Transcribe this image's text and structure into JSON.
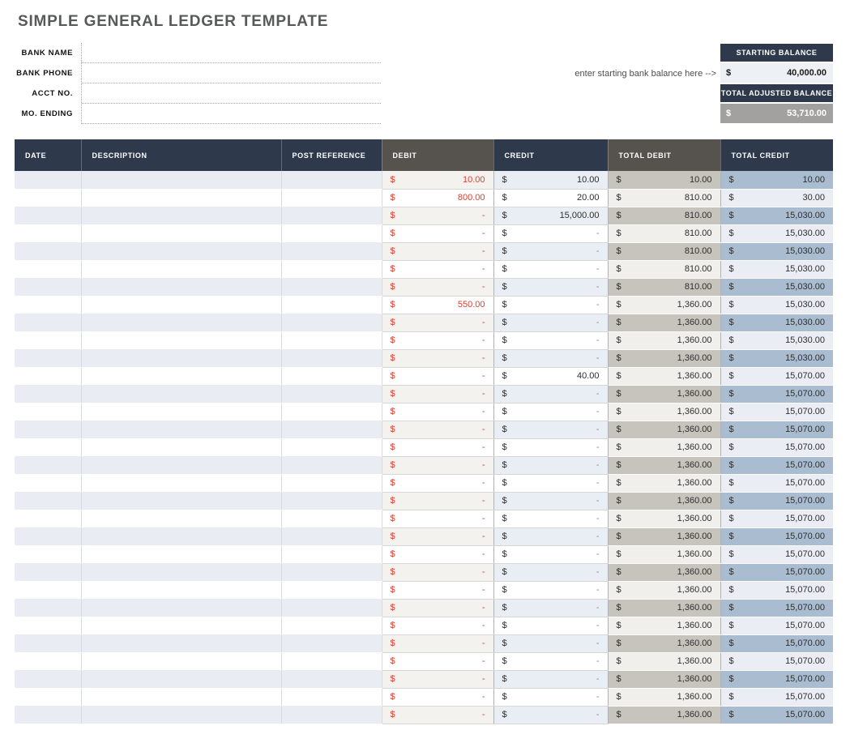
{
  "title": "SIMPLE GENERAL LEDGER TEMPLATE",
  "form": {
    "fields": [
      {
        "label": "BANK NAME",
        "value": ""
      },
      {
        "label": "BANK PHONE",
        "value": ""
      },
      {
        "label": "ACCT NO.",
        "value": ""
      },
      {
        "label": "MO. ENDING",
        "value": ""
      }
    ]
  },
  "balance_panel": {
    "note": "enter starting bank balance here -->",
    "starting_balance": {
      "label": "STARTING BALANCE",
      "currency": "$",
      "value": "40,000.00"
    },
    "adjusted_balance": {
      "label": "TOTAL ADJUSTED BALANCE",
      "currency": "$",
      "value": "53,710.00"
    }
  },
  "table": {
    "currency_symbol": "$",
    "columns": [
      {
        "label": "DATE",
        "style": "navy"
      },
      {
        "label": "DESCRIPTION",
        "style": "navy"
      },
      {
        "label": "POST REFERENCE",
        "style": "navy"
      },
      {
        "label": "DEBIT",
        "style": "gray"
      },
      {
        "label": "CREDIT",
        "style": "navy"
      },
      {
        "label": "TOTAL DEBIT",
        "style": "gray"
      },
      {
        "label": "TOTAL CREDIT",
        "style": "navy"
      }
    ],
    "rows": [
      {
        "date": "",
        "description": "",
        "post_reference": "",
        "debit": "10.00",
        "credit": "10.00",
        "total_debit": "10.00",
        "total_credit": "10.00"
      },
      {
        "date": "",
        "description": "",
        "post_reference": "",
        "debit": "800.00",
        "credit": "20.00",
        "total_debit": "810.00",
        "total_credit": "30.00"
      },
      {
        "date": "",
        "description": "",
        "post_reference": "",
        "debit": "-",
        "credit": "15,000.00",
        "total_debit": "810.00",
        "total_credit": "15,030.00"
      },
      {
        "date": "",
        "description": "",
        "post_reference": "",
        "debit": "-",
        "credit": "-",
        "total_debit": "810.00",
        "total_credit": "15,030.00"
      },
      {
        "date": "",
        "description": "",
        "post_reference": "",
        "debit": "-",
        "credit": "-",
        "total_debit": "810.00",
        "total_credit": "15,030.00"
      },
      {
        "date": "",
        "description": "",
        "post_reference": "",
        "debit": "-",
        "credit": "-",
        "total_debit": "810.00",
        "total_credit": "15,030.00"
      },
      {
        "date": "",
        "description": "",
        "post_reference": "",
        "debit": "-",
        "credit": "-",
        "total_debit": "810.00",
        "total_credit": "15,030.00"
      },
      {
        "date": "",
        "description": "",
        "post_reference": "",
        "debit": "550.00",
        "credit": "-",
        "total_debit": "1,360.00",
        "total_credit": "15,030.00"
      },
      {
        "date": "",
        "description": "",
        "post_reference": "",
        "debit": "-",
        "credit": "-",
        "total_debit": "1,360.00",
        "total_credit": "15,030.00"
      },
      {
        "date": "",
        "description": "",
        "post_reference": "",
        "debit": "-",
        "credit": "-",
        "total_debit": "1,360.00",
        "total_credit": "15,030.00"
      },
      {
        "date": "",
        "description": "",
        "post_reference": "",
        "debit": "-",
        "credit": "-",
        "total_debit": "1,360.00",
        "total_credit": "15,030.00"
      },
      {
        "date": "",
        "description": "",
        "post_reference": "",
        "debit": "-",
        "credit": "40.00",
        "total_debit": "1,360.00",
        "total_credit": "15,070.00"
      },
      {
        "date": "",
        "description": "",
        "post_reference": "",
        "debit": "-",
        "credit": "-",
        "total_debit": "1,360.00",
        "total_credit": "15,070.00"
      },
      {
        "date": "",
        "description": "",
        "post_reference": "",
        "debit": "-",
        "credit": "-",
        "total_debit": "1,360.00",
        "total_credit": "15,070.00"
      },
      {
        "date": "",
        "description": "",
        "post_reference": "",
        "debit": "-",
        "credit": "-",
        "total_debit": "1,360.00",
        "total_credit": "15,070.00"
      },
      {
        "date": "",
        "description": "",
        "post_reference": "",
        "debit": "-",
        "credit": "-",
        "total_debit": "1,360.00",
        "total_credit": "15,070.00"
      },
      {
        "date": "",
        "description": "",
        "post_reference": "",
        "debit": "-",
        "credit": "-",
        "total_debit": "1,360.00",
        "total_credit": "15,070.00"
      },
      {
        "date": "",
        "description": "",
        "post_reference": "",
        "debit": "-",
        "credit": "-",
        "total_debit": "1,360.00",
        "total_credit": "15,070.00"
      },
      {
        "date": "",
        "description": "",
        "post_reference": "",
        "debit": "-",
        "credit": "-",
        "total_debit": "1,360.00",
        "total_credit": "15,070.00"
      },
      {
        "date": "",
        "description": "",
        "post_reference": "",
        "debit": "-",
        "credit": "-",
        "total_debit": "1,360.00",
        "total_credit": "15,070.00"
      },
      {
        "date": "",
        "description": "",
        "post_reference": "",
        "debit": "-",
        "credit": "-",
        "total_debit": "1,360.00",
        "total_credit": "15,070.00"
      },
      {
        "date": "",
        "description": "",
        "post_reference": "",
        "debit": "-",
        "credit": "-",
        "total_debit": "1,360.00",
        "total_credit": "15,070.00"
      },
      {
        "date": "",
        "description": "",
        "post_reference": "",
        "debit": "-",
        "credit": "-",
        "total_debit": "1,360.00",
        "total_credit": "15,070.00"
      },
      {
        "date": "",
        "description": "",
        "post_reference": "",
        "debit": "-",
        "credit": "-",
        "total_debit": "1,360.00",
        "total_credit": "15,070.00"
      },
      {
        "date": "",
        "description": "",
        "post_reference": "",
        "debit": "-",
        "credit": "-",
        "total_debit": "1,360.00",
        "total_credit": "15,070.00"
      },
      {
        "date": "",
        "description": "",
        "post_reference": "",
        "debit": "-",
        "credit": "-",
        "total_debit": "1,360.00",
        "total_credit": "15,070.00"
      },
      {
        "date": "",
        "description": "",
        "post_reference": "",
        "debit": "-",
        "credit": "-",
        "total_debit": "1,360.00",
        "total_credit": "15,070.00"
      },
      {
        "date": "",
        "description": "",
        "post_reference": "",
        "debit": "-",
        "credit": "-",
        "total_debit": "1,360.00",
        "total_credit": "15,070.00"
      },
      {
        "date": "",
        "description": "",
        "post_reference": "",
        "debit": "-",
        "credit": "-",
        "total_debit": "1,360.00",
        "total_credit": "15,070.00"
      },
      {
        "date": "",
        "description": "",
        "post_reference": "",
        "debit": "-",
        "credit": "-",
        "total_debit": "1,360.00",
        "total_credit": "15,070.00"
      },
      {
        "date": "",
        "description": "",
        "post_reference": "",
        "debit": "-",
        "credit": "-",
        "total_debit": "1,360.00",
        "total_credit": "15,070.00"
      }
    ]
  },
  "colors": {
    "header_navy": "#2e3a4c",
    "header_gray": "#56524e",
    "debit_red": "#e23b2e",
    "row_shade": "#e9ecf2",
    "total_debit_shade": "#c7c3bd",
    "total_credit_shade": "#a9bcd0",
    "adjusted_value_bg": "#a3a19f",
    "title_gray": "#58595b"
  }
}
